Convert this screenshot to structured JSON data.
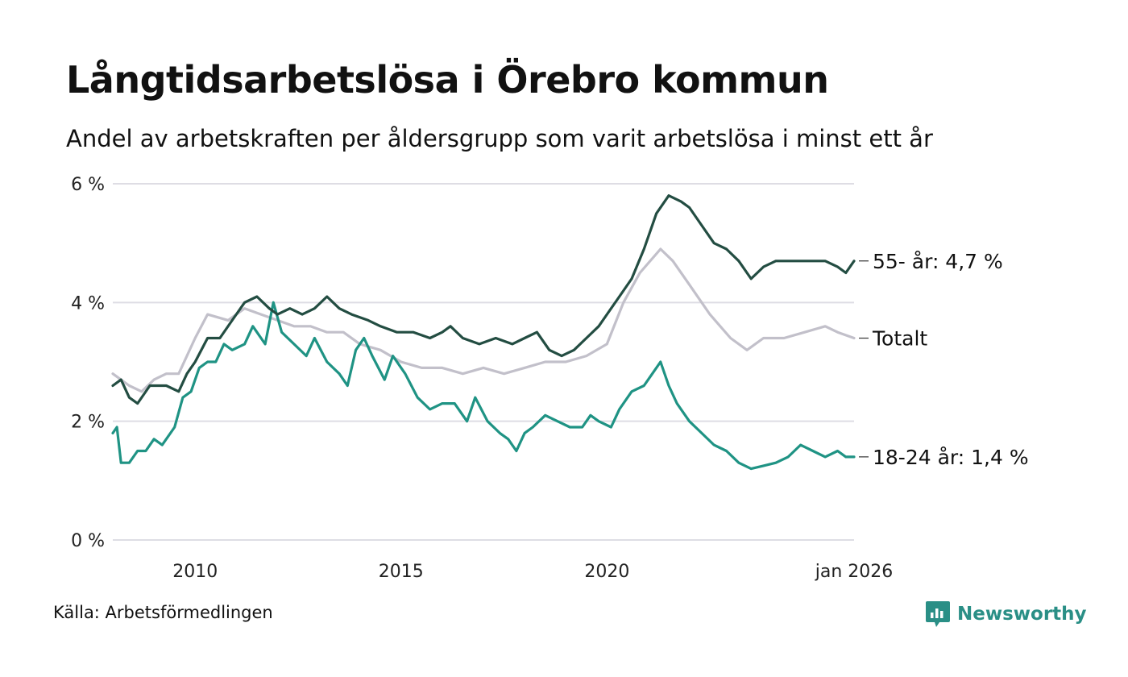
{
  "header": {
    "title": "Långtidsarbetslösa i Örebro kommun",
    "subtitle": "Andel av arbetskraften per åldersgrupp som varit arbetslösa i minst ett år"
  },
  "footer": {
    "source": "Källa: Arbetsförmedlingen",
    "brand": "Newsworthy"
  },
  "colors": {
    "series_55": "#234d42",
    "series_total": "#c2c0ca",
    "series_18_24": "#1f9384",
    "grid": "#dedde4",
    "brand": "#2a8f86"
  },
  "chart_data": {
    "type": "line",
    "title": "Långtidsarbetslösa i Örebro kommun",
    "xlabel": "",
    "ylabel": "",
    "xlim": [
      2008.0,
      2026.0
    ],
    "ylim": [
      0,
      6
    ],
    "grid": true,
    "y_ticks": [
      0,
      2,
      4,
      6
    ],
    "y_tick_labels": [
      "0 %",
      "2 %",
      "4 %",
      "6 %"
    ],
    "x_ticks": [
      2010,
      2015,
      2020,
      2026.0
    ],
    "x_tick_labels": [
      "2010",
      "2015",
      "2020",
      "jan 2026"
    ],
    "series": [
      {
        "name": "Totalt",
        "end_label": "Totalt",
        "color": "#c2c0ca",
        "points": [
          [
            2008.0,
            2.8
          ],
          [
            2008.4,
            2.6
          ],
          [
            2008.7,
            2.5
          ],
          [
            2009.0,
            2.7
          ],
          [
            2009.3,
            2.8
          ],
          [
            2009.6,
            2.8
          ],
          [
            2010.0,
            3.4
          ],
          [
            2010.3,
            3.8
          ],
          [
            2010.8,
            3.7
          ],
          [
            2011.2,
            3.9
          ],
          [
            2011.6,
            3.8
          ],
          [
            2012.0,
            3.7
          ],
          [
            2012.4,
            3.6
          ],
          [
            2012.8,
            3.6
          ],
          [
            2013.2,
            3.5
          ],
          [
            2013.6,
            3.5
          ],
          [
            2014.0,
            3.3
          ],
          [
            2014.5,
            3.2
          ],
          [
            2015.0,
            3.0
          ],
          [
            2015.5,
            2.9
          ],
          [
            2016.0,
            2.9
          ],
          [
            2016.5,
            2.8
          ],
          [
            2017.0,
            2.9
          ],
          [
            2017.5,
            2.8
          ],
          [
            2018.0,
            2.9
          ],
          [
            2018.5,
            3.0
          ],
          [
            2019.0,
            3.0
          ],
          [
            2019.5,
            3.1
          ],
          [
            2020.0,
            3.3
          ],
          [
            2020.4,
            4.0
          ],
          [
            2020.8,
            4.5
          ],
          [
            2021.3,
            4.9
          ],
          [
            2021.6,
            4.7
          ],
          [
            2022.0,
            4.3
          ],
          [
            2022.5,
            3.8
          ],
          [
            2023.0,
            3.4
          ],
          [
            2023.4,
            3.2
          ],
          [
            2023.8,
            3.4
          ],
          [
            2024.3,
            3.4
          ],
          [
            2024.8,
            3.5
          ],
          [
            2025.3,
            3.6
          ],
          [
            2025.6,
            3.5
          ],
          [
            2026.0,
            3.4
          ]
        ]
      },
      {
        "name": "55- år",
        "end_label": "55- år: 4,7 %",
        "color": "#234d42",
        "points": [
          [
            2008.0,
            2.6
          ],
          [
            2008.2,
            2.7
          ],
          [
            2008.4,
            2.4
          ],
          [
            2008.6,
            2.3
          ],
          [
            2008.9,
            2.6
          ],
          [
            2009.3,
            2.6
          ],
          [
            2009.6,
            2.5
          ],
          [
            2009.8,
            2.8
          ],
          [
            2010.0,
            3.0
          ],
          [
            2010.3,
            3.4
          ],
          [
            2010.6,
            3.4
          ],
          [
            2010.9,
            3.7
          ],
          [
            2011.2,
            4.0
          ],
          [
            2011.5,
            4.1
          ],
          [
            2011.8,
            3.9
          ],
          [
            2012.0,
            3.8
          ],
          [
            2012.3,
            3.9
          ],
          [
            2012.6,
            3.8
          ],
          [
            2012.9,
            3.9
          ],
          [
            2013.2,
            4.1
          ],
          [
            2013.5,
            3.9
          ],
          [
            2013.8,
            3.8
          ],
          [
            2014.2,
            3.7
          ],
          [
            2014.5,
            3.6
          ],
          [
            2014.9,
            3.5
          ],
          [
            2015.3,
            3.5
          ],
          [
            2015.7,
            3.4
          ],
          [
            2016.0,
            3.5
          ],
          [
            2016.2,
            3.6
          ],
          [
            2016.5,
            3.4
          ],
          [
            2016.9,
            3.3
          ],
          [
            2017.3,
            3.4
          ],
          [
            2017.7,
            3.3
          ],
          [
            2018.0,
            3.4
          ],
          [
            2018.3,
            3.5
          ],
          [
            2018.6,
            3.2
          ],
          [
            2018.9,
            3.1
          ],
          [
            2019.2,
            3.2
          ],
          [
            2019.5,
            3.4
          ],
          [
            2019.8,
            3.6
          ],
          [
            2020.0,
            3.8
          ],
          [
            2020.3,
            4.1
          ],
          [
            2020.6,
            4.4
          ],
          [
            2020.9,
            4.9
          ],
          [
            2021.2,
            5.5
          ],
          [
            2021.5,
            5.8
          ],
          [
            2021.8,
            5.7
          ],
          [
            2022.0,
            5.6
          ],
          [
            2022.3,
            5.3
          ],
          [
            2022.6,
            5.0
          ],
          [
            2022.9,
            4.9
          ],
          [
            2023.2,
            4.7
          ],
          [
            2023.5,
            4.4
          ],
          [
            2023.8,
            4.6
          ],
          [
            2024.1,
            4.7
          ],
          [
            2024.5,
            4.7
          ],
          [
            2024.9,
            4.7
          ],
          [
            2025.3,
            4.7
          ],
          [
            2025.6,
            4.6
          ],
          [
            2025.8,
            4.5
          ],
          [
            2026.0,
            4.7
          ]
        ]
      },
      {
        "name": "18-24 år",
        "end_label": "18-24 år: 1,4 %",
        "color": "#1f9384",
        "points": [
          [
            2008.0,
            1.8
          ],
          [
            2008.1,
            1.9
          ],
          [
            2008.2,
            1.3
          ],
          [
            2008.4,
            1.3
          ],
          [
            2008.6,
            1.5
          ],
          [
            2008.8,
            1.5
          ],
          [
            2009.0,
            1.7
          ],
          [
            2009.2,
            1.6
          ],
          [
            2009.5,
            1.9
          ],
          [
            2009.7,
            2.4
          ],
          [
            2009.9,
            2.5
          ],
          [
            2010.1,
            2.9
          ],
          [
            2010.3,
            3.0
          ],
          [
            2010.5,
            3.0
          ],
          [
            2010.7,
            3.3
          ],
          [
            2010.9,
            3.2
          ],
          [
            2011.2,
            3.3
          ],
          [
            2011.4,
            3.6
          ],
          [
            2011.7,
            3.3
          ],
          [
            2011.9,
            4.0
          ],
          [
            2012.1,
            3.5
          ],
          [
            2012.4,
            3.3
          ],
          [
            2012.7,
            3.1
          ],
          [
            2012.9,
            3.4
          ],
          [
            2013.2,
            3.0
          ],
          [
            2013.5,
            2.8
          ],
          [
            2013.7,
            2.6
          ],
          [
            2013.9,
            3.2
          ],
          [
            2014.1,
            3.4
          ],
          [
            2014.3,
            3.1
          ],
          [
            2014.6,
            2.7
          ],
          [
            2014.8,
            3.1
          ],
          [
            2015.1,
            2.8
          ],
          [
            2015.4,
            2.4
          ],
          [
            2015.7,
            2.2
          ],
          [
            2016.0,
            2.3
          ],
          [
            2016.3,
            2.3
          ],
          [
            2016.6,
            2.0
          ],
          [
            2016.8,
            2.4
          ],
          [
            2017.1,
            2.0
          ],
          [
            2017.4,
            1.8
          ],
          [
            2017.6,
            1.7
          ],
          [
            2017.8,
            1.5
          ],
          [
            2018.0,
            1.8
          ],
          [
            2018.2,
            1.9
          ],
          [
            2018.5,
            2.1
          ],
          [
            2018.8,
            2.0
          ],
          [
            2019.1,
            1.9
          ],
          [
            2019.4,
            1.9
          ],
          [
            2019.6,
            2.1
          ],
          [
            2019.8,
            2.0
          ],
          [
            2020.1,
            1.9
          ],
          [
            2020.3,
            2.2
          ],
          [
            2020.6,
            2.5
          ],
          [
            2020.9,
            2.6
          ],
          [
            2021.1,
            2.8
          ],
          [
            2021.3,
            3.0
          ],
          [
            2021.5,
            2.6
          ],
          [
            2021.7,
            2.3
          ],
          [
            2022.0,
            2.0
          ],
          [
            2022.3,
            1.8
          ],
          [
            2022.6,
            1.6
          ],
          [
            2022.9,
            1.5
          ],
          [
            2023.2,
            1.3
          ],
          [
            2023.5,
            1.2
          ],
          [
            2023.8,
            1.25
          ],
          [
            2024.1,
            1.3
          ],
          [
            2024.4,
            1.4
          ],
          [
            2024.7,
            1.6
          ],
          [
            2025.0,
            1.5
          ],
          [
            2025.3,
            1.4
          ],
          [
            2025.6,
            1.5
          ],
          [
            2025.8,
            1.4
          ],
          [
            2026.0,
            1.4
          ]
        ]
      }
    ]
  }
}
